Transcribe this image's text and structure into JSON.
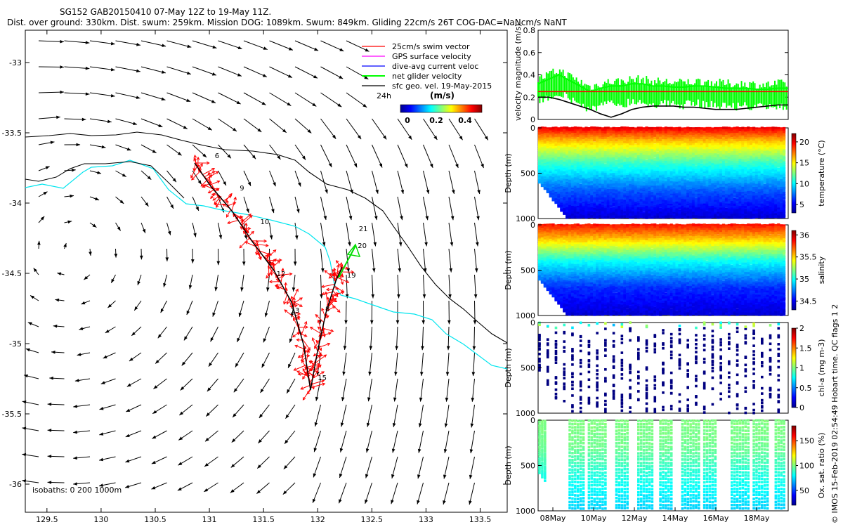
{
  "header": {
    "line1": "SG152 GAB20150410 07-May 12Z to 19-May 11Z.",
    "line2": "Dist. over ground: 330km. Dist. swum: 259km. Mission DOG: 1089km. Swum: 849km. Gliding 22cm/s 26T COG-DAC=NaNcm/s NaNT"
  },
  "watermark": "© IMOS 15-Feb-2019 02:54:49 Hobart time. QC flags 1  2",
  "map": {
    "xticks": [
      "129.5",
      "130",
      "130.5",
      "131",
      "131.5",
      "132",
      "132.5",
      "133",
      "133.5"
    ],
    "yticks": [
      "-33",
      "-33.5",
      "-34",
      "-34.5",
      "-35",
      "-35.5",
      "-36"
    ],
    "xlim": [
      129.3,
      133.75
    ],
    "ylim": [
      -36.2,
      -32.77
    ],
    "legend": [
      {
        "label": "25cm/s swim vector",
        "color": "#ff0000"
      },
      {
        "label": "GPS surface velocity",
        "color": "#ff00ff"
      },
      {
        "label": "dive-avg current veloc",
        "color": "#0000ff"
      },
      {
        "label": "net glider velocity",
        "color": "#00ff00"
      },
      {
        "label": "sfc geo. vel. 19-May-2015",
        "color": "#000000"
      }
    ],
    "scale_label": "24h",
    "colorbar_title": "(m/s)",
    "colorbar_ticks": [
      "0",
      "0.2",
      "0.4"
    ],
    "isobaths_label": "isobaths: 0   200  1000m",
    "colors": {
      "track": "#ff0000",
      "coast": "#00e5ee",
      "isobath": "#000000"
    },
    "day_labels": [
      {
        "label": "6",
        "lon": 131.05,
        "lat": -33.68
      },
      {
        "label": "9",
        "lon": 131.28,
        "lat": -33.91
      },
      {
        "label": "10",
        "lon": 131.47,
        "lat": -34.15
      },
      {
        "label": "12",
        "lon": 131.62,
        "lat": -34.52
      },
      {
        "label": "13",
        "lon": 131.75,
        "lat": -34.78
      },
      {
        "label": "15",
        "lon": 132.0,
        "lat": -35.26
      },
      {
        "label": "8",
        "lon": 132.07,
        "lat": -34.77
      },
      {
        "label": "19",
        "lon": 132.27,
        "lat": -34.53
      },
      {
        "label": "20",
        "lon": 132.37,
        "lat": -34.32
      },
      {
        "label": "21",
        "lon": 132.38,
        "lat": -34.2
      }
    ]
  },
  "chart_data": [
    {
      "type": "line",
      "title": "",
      "ylabel": "velocity magnitude (m/s)",
      "ylim": [
        0,
        0.8
      ],
      "yticks": [
        "0",
        "0.2",
        "0.4",
        "0.6",
        "0.8"
      ],
      "series": [
        {
          "name": "",
          "color": "#00ff00",
          "x": [
            0,
            0.5,
            1,
            1.5,
            2,
            2.5,
            3,
            3.5,
            4,
            4.5,
            5,
            5.5,
            6,
            6.5,
            7,
            7.5,
            8,
            8.5,
            9,
            9.5,
            10,
            10.5,
            11,
            11.5,
            12
          ],
          "values": [
            0.32,
            0.36,
            0.4,
            0.35,
            0.3,
            0.25,
            0.28,
            0.3,
            0.3,
            0.32,
            0.32,
            0.3,
            0.3,
            0.29,
            0.29,
            0.3,
            0.3,
            0.29,
            0.28,
            0.28,
            0.28,
            0.27,
            0.27,
            0.28,
            0.28
          ]
        },
        {
          "name": "",
          "color": "#ff0000",
          "x": [
            0,
            12
          ],
          "values": [
            0.25,
            0.25
          ]
        },
        {
          "name": "",
          "color": "#000000",
          "x": [
            0,
            0.5,
            1,
            1.5,
            2,
            2.5,
            3,
            3.5,
            4,
            4.5,
            5,
            5.5,
            6,
            6.5,
            7,
            7.5,
            8,
            8.5,
            9,
            9.5,
            10,
            10.5,
            11,
            11.5,
            12
          ],
          "values": [
            0.2,
            0.2,
            0.18,
            0.15,
            0.12,
            0.09,
            0.05,
            0.02,
            0.05,
            0.09,
            0.11,
            0.12,
            0.12,
            0.12,
            0.11,
            0.11,
            0.1,
            0.09,
            0.09,
            0.09,
            0.1,
            0.11,
            0.12,
            0.13,
            0.13
          ]
        }
      ]
    },
    {
      "type": "heatmap",
      "ylabel": "Depth (m)",
      "yticks": [
        "0",
        "500",
        "1000"
      ],
      "ylim": [
        1000,
        0
      ],
      "colorbar_label": "temperature (°C)",
      "colorbar_ticks": [
        "5",
        "10",
        "15",
        "20"
      ],
      "crange": [
        3,
        22
      ],
      "profile": [
        {
          "depth": 0,
          "value": 20
        },
        {
          "depth": 150,
          "value": 16
        },
        {
          "depth": 400,
          "value": 11
        },
        {
          "depth": 700,
          "value": 7
        },
        {
          "depth": 1000,
          "value": 4.5
        }
      ]
    },
    {
      "type": "heatmap",
      "ylabel": "Depth (m)",
      "yticks": [
        "0",
        "500",
        "1000"
      ],
      "ylim": [
        1000,
        0
      ],
      "colorbar_label": "salinity",
      "colorbar_ticks": [
        "34.5",
        "35",
        "35.5",
        "36"
      ],
      "crange": [
        34.3,
        36.1
      ],
      "profile": [
        {
          "depth": 0,
          "value": 35.85
        },
        {
          "depth": 150,
          "value": 35.55
        },
        {
          "depth": 400,
          "value": 35.0
        },
        {
          "depth": 700,
          "value": 34.6
        },
        {
          "depth": 1000,
          "value": 34.45
        }
      ]
    },
    {
      "type": "scatter",
      "ylabel": "Depth (m)",
      "yticks": [
        "0",
        "500",
        "1000"
      ],
      "ylim": [
        1000,
        0
      ],
      "colorbar_label": "chl-a (mg m-3)",
      "colorbar_ticks": [
        "0",
        "0.5",
        "1",
        "1.5",
        "2"
      ],
      "crange": [
        0,
        2
      ],
      "surface_value": 0.6,
      "deep_value": 0.0
    },
    {
      "type": "scatter",
      "ylabel": "Depth (m)",
      "yticks": [
        "0",
        "500",
        "1000"
      ],
      "ylim": [
        1000,
        0
      ],
      "xticks": [
        "08May",
        "10May",
        "12May",
        "14May",
        "16May",
        "18May"
      ],
      "colorbar_label": "Ox. sat. ratio (%)",
      "colorbar_ticks": [
        "50",
        "100",
        "150"
      ],
      "crange": [
        20,
        180
      ],
      "profile": [
        {
          "depth": 0,
          "value": 100
        },
        {
          "depth": 300,
          "value": 95
        },
        {
          "depth": 600,
          "value": 70
        },
        {
          "depth": 1000,
          "value": 45
        }
      ]
    }
  ]
}
